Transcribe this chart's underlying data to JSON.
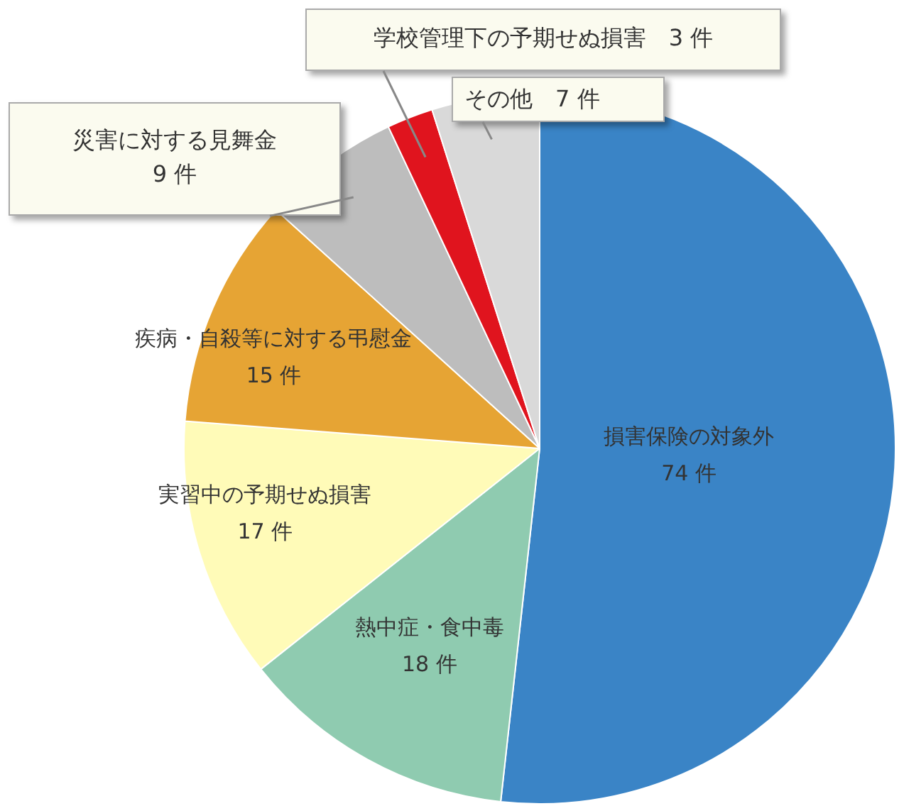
{
  "chart_data": {
    "type": "pie",
    "categories": [
      "損害保険の対象外",
      "熱中症・食中毒",
      "実習中の予期せぬ損害",
      "疾病・自殺等に対する弔慰金",
      "災害に対する見舞金",
      "学校管理下の予期せぬ損害",
      "その他"
    ],
    "values": [
      74,
      18,
      17,
      15,
      9,
      3,
      7
    ],
    "value_labels": [
      "74 件",
      "18 件",
      "17 件",
      "15 件",
      "9 件",
      "3 件",
      "7 件"
    ],
    "colors": [
      "#3a84c6",
      "#8fcbb0",
      "#fffbb8",
      "#e6a434",
      "#bdbdbd",
      "#e0141e",
      "#d9d9d9"
    ],
    "legend": false
  }
}
